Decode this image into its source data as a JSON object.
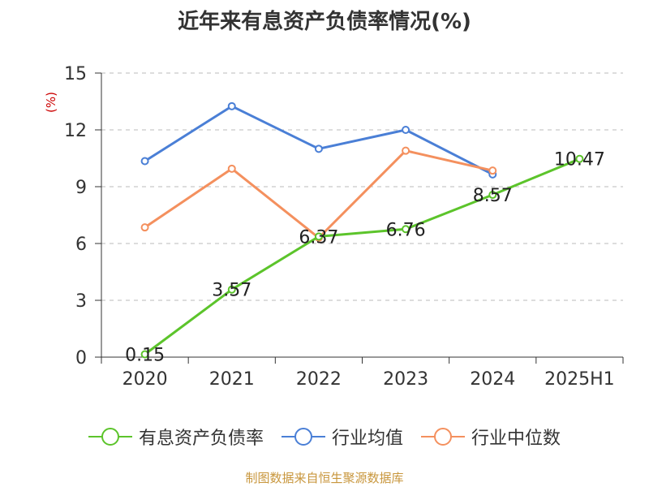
{
  "chart_data": {
    "type": "line",
    "title": "近年来有息资产负债率情况(%)",
    "ylabel": "(%)",
    "xlabel": "",
    "categories": [
      "2020",
      "2021",
      "2022",
      "2023",
      "2024",
      "2025H1"
    ],
    "ylim": [
      0,
      15
    ],
    "yticks": [
      0,
      3,
      6,
      9,
      12,
      15
    ],
    "grid": true,
    "legend_position": "bottom",
    "series": [
      {
        "name": "有息资产负债率",
        "color": "#5cc42b",
        "values": [
          0.15,
          3.57,
          6.37,
          6.76,
          8.57,
          10.47
        ],
        "labels": [
          "0.15",
          "3.57",
          "6.37",
          "6.76",
          "8.57",
          "10.47"
        ]
      },
      {
        "name": "行业均值",
        "color": "#4a7fd6",
        "values": [
          10.35,
          13.25,
          11.0,
          12.0,
          9.65,
          null
        ]
      },
      {
        "name": "行业中位数",
        "color": "#f4905e",
        "values": [
          6.85,
          9.95,
          6.3,
          10.9,
          9.85,
          null
        ]
      }
    ]
  },
  "source": "制图数据来自恒生聚源数据库",
  "colors": {
    "axis": "#333333",
    "grid": "#bbbbbb",
    "ylabel": "#cc0000",
    "source": "#c8963c"
  }
}
